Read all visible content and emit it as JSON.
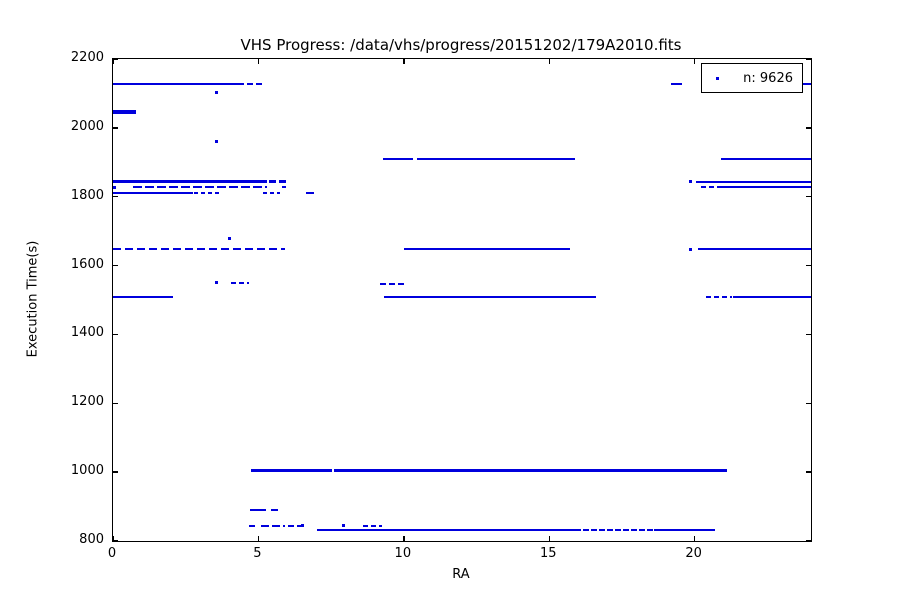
{
  "figure": {
    "title": "VHS Progress: /data/vhs/progress/20151202/179A2010.fits"
  },
  "legend": {
    "label": "n: 9626",
    "marker": "point-marker",
    "marker_color": "#0000dd"
  },
  "chart_data": {
    "type": "scatter",
    "title": "VHS Progress: /data/vhs/progress/20151202/179A2010.fits",
    "xlabel": "RA",
    "ylabel": "Execution Time(s)",
    "xlim": [
      0,
      24
    ],
    "ylim": [
      800,
      2200
    ],
    "xticks": [
      0,
      5,
      10,
      15,
      20
    ],
    "yticks": [
      800,
      1000,
      1200,
      1400,
      1600,
      1800,
      2000,
      2200
    ],
    "grid": false,
    "legend_position": "upper right",
    "n_points": 9626,
    "point_color": "#0000dd",
    "series_note": "dense horizontal bands of scatter points; each band listed as y-value with RA extent segments",
    "segments": [
      {
        "y": 2128,
        "x1": 0,
        "x2": 4.3,
        "h": 2
      },
      {
        "y": 2128,
        "x1": 4.3,
        "x2": 5.15,
        "h": 2,
        "dash": [
          6,
          3
        ]
      },
      {
        "y": 2128,
        "x1": 19.2,
        "x2": 19.55,
        "h": 2
      },
      {
        "y": 2128,
        "x1": 20.3,
        "x2": 24,
        "h": 2
      },
      {
        "y": 2046,
        "x1": 0,
        "x2": 0.78,
        "h": 4
      },
      {
        "y": 1910,
        "x1": 9.28,
        "x2": 10.33,
        "h": 2
      },
      {
        "y": 1910,
        "x1": 10.45,
        "x2": 15.9,
        "h": 2
      },
      {
        "y": 1910,
        "x1": 20.9,
        "x2": 24,
        "h": 2
      },
      {
        "y": 1843,
        "x1": 0,
        "x2": 5.3,
        "h": 3
      },
      {
        "y": 1843,
        "x1": 5.35,
        "x2": 6.07,
        "h": 3,
        "dash": [
          7,
          3
        ]
      },
      {
        "y": 1843,
        "x1": 20.03,
        "x2": 24,
        "h": 2.5
      },
      {
        "y": 1827,
        "x1": 0.7,
        "x2": 5.3,
        "h": 2,
        "dash": [
          9,
          3
        ]
      },
      {
        "y": 1827,
        "x1": 5.8,
        "x2": 5.95,
        "h": 2
      },
      {
        "y": 1827,
        "x1": 20.2,
        "x2": 20.8,
        "h": 2,
        "dash": [
          5,
          3
        ]
      },
      {
        "y": 1827,
        "x1": 20.8,
        "x2": 24,
        "h": 2
      },
      {
        "y": 1810,
        "x1": 0,
        "x2": 2.75,
        "h": 2
      },
      {
        "y": 1810,
        "x1": 2.8,
        "x2": 3.66,
        "h": 2,
        "dash": [
          4,
          3
        ]
      },
      {
        "y": 1810,
        "x1": 5.17,
        "x2": 5.74,
        "h": 2,
        "dash": [
          4,
          3
        ]
      },
      {
        "y": 1810,
        "x1": 6.63,
        "x2": 6.92,
        "h": 2
      },
      {
        "y": 1647,
        "x1": 0,
        "x2": 5.9,
        "h": 2,
        "dash": [
          8,
          4
        ]
      },
      {
        "y": 1647,
        "x1": 10.0,
        "x2": 15.73,
        "h": 2
      },
      {
        "y": 1647,
        "x1": 20.1,
        "x2": 24,
        "h": 2
      },
      {
        "y": 1550,
        "x1": 4.07,
        "x2": 4.69,
        "h": 2,
        "dash": [
          5,
          3
        ]
      },
      {
        "y": 1547,
        "x1": 9.18,
        "x2": 10.05,
        "h": 2,
        "dash": [
          6,
          3
        ]
      },
      {
        "y": 1510,
        "x1": 0,
        "x2": 2.07,
        "h": 2
      },
      {
        "y": 1510,
        "x1": 9.33,
        "x2": 16.6,
        "h": 2
      },
      {
        "y": 1510,
        "x1": 20.4,
        "x2": 21.3,
        "h": 2,
        "dash": [
          5,
          3
        ]
      },
      {
        "y": 1510,
        "x1": 21.3,
        "x2": 24,
        "h": 2
      },
      {
        "y": 1006,
        "x1": 4.76,
        "x2": 7.53,
        "h": 3
      },
      {
        "y": 1006,
        "x1": 7.6,
        "x2": 21.1,
        "h": 3
      },
      {
        "y": 889,
        "x1": 4.72,
        "x2": 5.25,
        "h": 2
      },
      {
        "y": 889,
        "x1": 5.42,
        "x2": 5.66,
        "h": 2
      },
      {
        "y": 845,
        "x1": 4.69,
        "x2": 5.0,
        "h": 2,
        "dash": [
          6,
          3
        ]
      },
      {
        "y": 845,
        "x1": 5.1,
        "x2": 5.9,
        "h": 2,
        "dash": [
          8,
          3
        ]
      },
      {
        "y": 845,
        "x1": 6.0,
        "x2": 6.6,
        "h": 2,
        "dash": [
          6,
          3
        ]
      },
      {
        "y": 845,
        "x1": 8.6,
        "x2": 9.24,
        "h": 2,
        "dash": [
          5,
          3
        ]
      },
      {
        "y": 831,
        "x1": 7.0,
        "x2": 15.9,
        "h": 2
      },
      {
        "y": 831,
        "x1": 15.9,
        "x2": 18.6,
        "h": 2,
        "dash": [
          6,
          2
        ]
      },
      {
        "y": 831,
        "x1": 18.6,
        "x2": 20.7,
        "h": 2
      }
    ],
    "isolated_points": [
      {
        "x": 3.57,
        "y": 2104
      },
      {
        "x": 3.57,
        "y": 1960
      },
      {
        "x": 4.0,
        "y": 1680
      },
      {
        "x": 3.55,
        "y": 1550
      },
      {
        "x": 0.06,
        "y": 1827
      },
      {
        "x": 19.86,
        "y": 1843
      },
      {
        "x": 19.86,
        "y": 1647
      },
      {
        "x": 7.92,
        "y": 845
      },
      {
        "x": 6.5,
        "y": 845
      }
    ]
  }
}
